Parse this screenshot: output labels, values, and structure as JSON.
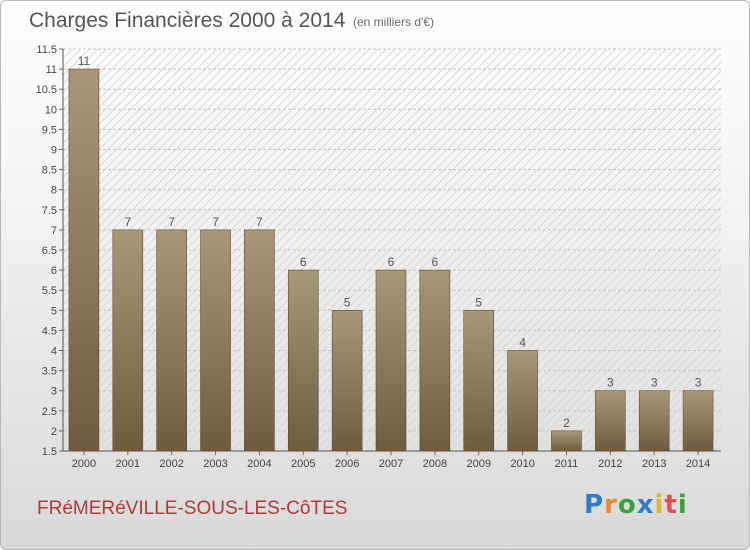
{
  "header": {
    "title": "Charges Financières 2000 à 2014",
    "subtitle": "(en milliers d'€)"
  },
  "footer": {
    "commune": "FRéMERéVILLE-SOUS-LES-CôTES",
    "logo": [
      "P",
      "r",
      "o",
      "x",
      "i",
      "t",
      "i"
    ]
  },
  "colors": {
    "bar_top": "#a89878",
    "bar_bottom": "#6e5c40",
    "commune": "#b03a3a"
  },
  "chart_data": {
    "type": "bar",
    "title": "Charges Financières 2000 à 2014",
    "subtitle": "(en milliers d'€)",
    "categories": [
      "2000",
      "2001",
      "2002",
      "2003",
      "2004",
      "2005",
      "2006",
      "2007",
      "2008",
      "2009",
      "2010",
      "2011",
      "2012",
      "2013",
      "2014"
    ],
    "values": [
      11,
      7,
      7,
      7,
      7,
      6,
      5,
      6,
      6,
      5,
      4,
      2,
      3,
      3,
      3
    ],
    "data_labels": [
      "11",
      "7",
      "7",
      "7",
      "7",
      "6",
      "5",
      "6",
      "6",
      "5",
      "4",
      "2",
      "3",
      "3",
      "3"
    ],
    "ylim": [
      1.5,
      11.5
    ],
    "yticks": [
      "1.5",
      "2",
      "2.5",
      "3",
      "3.5",
      "4",
      "4.5",
      "5",
      "5.5",
      "6",
      "6.5",
      "7",
      "7.5",
      "8",
      "8.5",
      "9",
      "9.5",
      "10",
      "10.5",
      "11",
      "11.5"
    ],
    "grid": true,
    "xlabel": "",
    "ylabel": ""
  }
}
